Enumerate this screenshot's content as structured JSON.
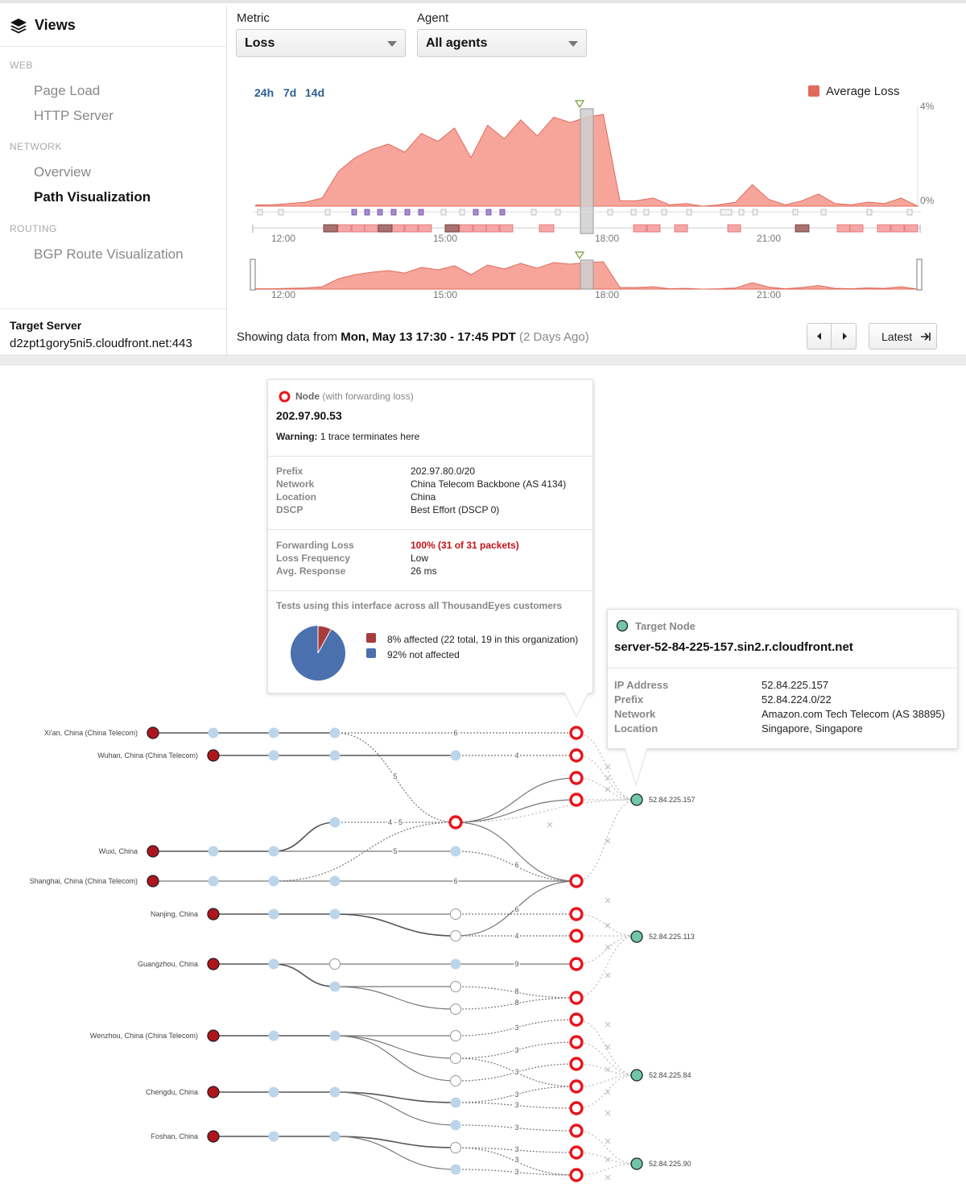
{
  "sidebar": {
    "title": "Views",
    "sections": [
      {
        "label": "WEB",
        "items": [
          {
            "label": "Page Load"
          },
          {
            "label": "HTTP Server"
          }
        ]
      },
      {
        "label": "NETWORK",
        "items": [
          {
            "label": "Overview"
          },
          {
            "label": "Path Visualization"
          }
        ]
      },
      {
        "label": "ROUTING",
        "items": [
          {
            "label": "BGP Route Visualization"
          }
        ]
      }
    ],
    "active_item": "Path Visualization",
    "target_label": "Target Server",
    "target_value": "d2zpt1gory5ni5.cloudfront.net:443"
  },
  "controls": {
    "metric_label": "Metric",
    "metric_value": "Loss",
    "agent_label": "Agent",
    "agent_value": "All agents"
  },
  "timeline": {
    "ranges": [
      "24h",
      "7d",
      "14d"
    ],
    "legend_label": "Average Loss",
    "y_top_label": "4%",
    "y_bottom_label": "0%",
    "x_ticks": [
      "12:00",
      "15:00",
      "18:00",
      "21:00"
    ],
    "overview_ticks": [
      "12:00",
      "15:00",
      "18:00",
      "21:00"
    ],
    "showing_prefix": "Showing data from",
    "showing_range": "Mon, May 13 17:30 - 17:45 PDT",
    "showing_ago": "(2 Days Ago)",
    "prev_icon": "caret-left-icon",
    "next_icon": "caret-right-icon",
    "latest_label": "Latest",
    "latest_icon": "arrow-to-end-icon",
    "colors": {
      "area": "#f7a59b",
      "area_line": "#e06a5c",
      "legend": "#e06a5c",
      "selection": "#cfcfcf"
    }
  },
  "chart_data": {
    "type": "area",
    "series": [
      {
        "name": "Average Loss",
        "values": [
          0.05,
          0.05,
          0.1,
          0.15,
          0.3,
          1.3,
          1.8,
          2.1,
          2.3,
          2.0,
          2.7,
          2.4,
          2.9,
          1.8,
          3.0,
          2.5,
          3.2,
          2.6,
          3.3,
          3.1,
          3.3,
          3.4,
          0.2,
          0.2,
          0.3,
          0.05,
          0.1,
          0.0,
          0.05,
          0.15,
          0.8,
          0.25,
          0.05,
          0.2,
          0.45,
          0.1,
          0.05,
          0.15,
          0.1,
          0.3,
          0.0
        ]
      }
    ],
    "ylim": [
      0,
      4
    ],
    "y_ticks": [
      "4%",
      "0%"
    ],
    "x_tick_labels": [
      "12:00",
      "15:00",
      "18:00",
      "21:00"
    ],
    "selected_window": "17:30 - 17:45",
    "legend": "top-right",
    "grid": false
  },
  "node_tip": {
    "icon": "loss-node-icon",
    "title": "Node",
    "title_suffix": "(with forwarding loss)",
    "ip": "202.97.90.53",
    "warning_label": "Warning:",
    "warning_text": "1 trace terminates here",
    "rows1": [
      {
        "k": "Prefix",
        "v": "202.97.80.0/20"
      },
      {
        "k": "Network",
        "v": "China Telecom Backbone (AS 4134)"
      },
      {
        "k": "Location",
        "v": "China"
      },
      {
        "k": "DSCP",
        "v": "Best Effort (DSCP 0)"
      }
    ],
    "rows2": [
      {
        "k": "Forwarding Loss",
        "v": "100% (31 of 31 packets)"
      },
      {
        "k": "Loss Frequency",
        "v": "Low"
      },
      {
        "k": "Avg. Response",
        "v": "26 ms"
      }
    ],
    "tests_heading": "Tests using this interface across all ThousandEyes customers",
    "pie": {
      "affected_percent": 8,
      "not_affected_percent": 92
    },
    "pie_legend": [
      {
        "label": "8% affected (22 total, 19 in this organization)",
        "color": "#a83c3c"
      },
      {
        "label": "92% not affected",
        "color": "#4a70ad"
      }
    ]
  },
  "target_tip": {
    "icon": "target-node-icon",
    "title": "Target Node",
    "hostname": "server-52-84-225-157.sin2.r.cloudfront.net",
    "rows": [
      {
        "k": "IP Address",
        "v": "52.84.225.157"
      },
      {
        "k": "Prefix",
        "v": "52.84.224.0/22"
      },
      {
        "k": "Network",
        "v": "Amazon.com Tech Telecom (AS 38895)"
      },
      {
        "k": "Location",
        "v": "Singapore, Singapore"
      }
    ]
  },
  "path": {
    "agents": [
      "Xi'an, China (China Telecom)",
      "Wuhan, China (China Telecom)",
      "Wuxi, China",
      "Shanghai, China (China Telecom)",
      "Nanjing, China",
      "Guangzhou, China",
      "Wenzhou, China (China Telecom)",
      "Chengdu, China",
      "Foshan, China"
    ],
    "targets": [
      "52.84.225.157",
      "52.84.225.113",
      "52.84.225.84",
      "52.84.225.90"
    ],
    "hop_labels": [
      "6",
      "4",
      "5",
      "4 - 5",
      "5",
      "6",
      "6",
      "6",
      "4",
      "9",
      "8",
      "8",
      "3",
      "3",
      "3",
      "3",
      "3",
      "3",
      "3",
      "3",
      "3"
    ],
    "colors": {
      "agent": "#b0151e",
      "hop": "#bdd5ea",
      "loss_ring": "#e8141c",
      "target": "#6fc6a8"
    }
  }
}
